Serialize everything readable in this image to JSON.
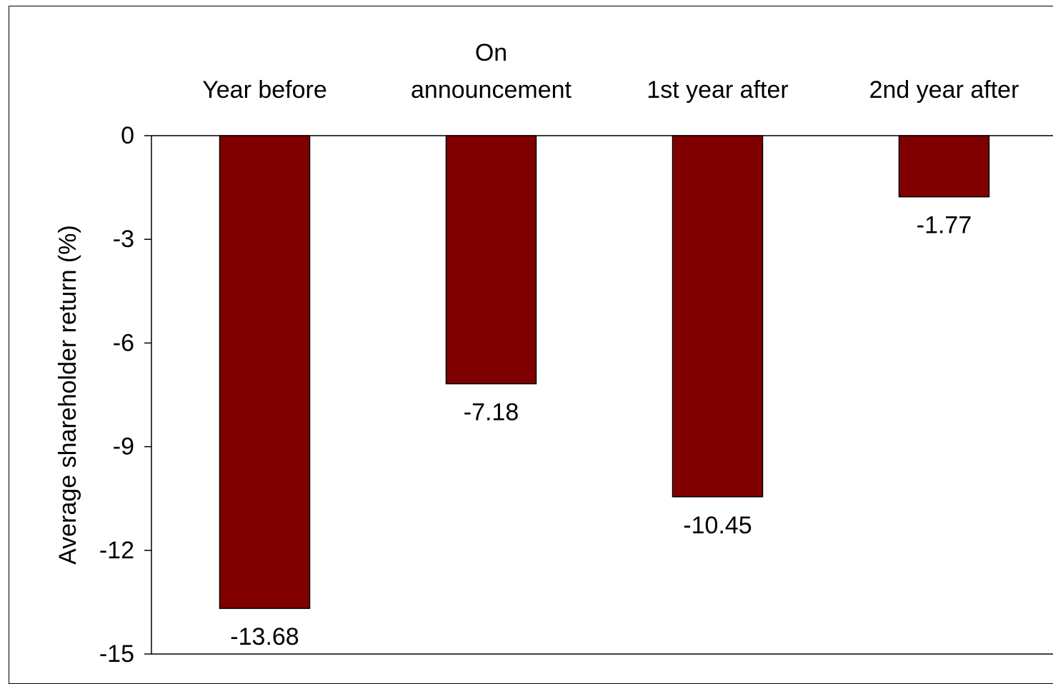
{
  "chart_data": {
    "type": "bar",
    "categories": [
      [
        "Year before"
      ],
      [
        "On",
        "announcement"
      ],
      [
        "1st year after"
      ],
      [
        "2nd year after"
      ]
    ],
    "values": [
      -13.68,
      -7.18,
      -10.45,
      -1.77
    ],
    "data_labels": [
      "-13.68",
      "-7.18",
      "-10.45",
      "-1.77"
    ],
    "title": "",
    "xlabel": "",
    "ylabel": "Average shareholder return (%)",
    "ylim": [
      -15,
      0
    ],
    "yticks": [
      0,
      -3,
      -6,
      -9,
      -12,
      -15
    ],
    "ytick_labels": [
      "0",
      "-3",
      "-6",
      "-9",
      "-12",
      "-15"
    ],
    "category_axis_position": "top",
    "grid": false,
    "legend": "none",
    "bar_color": "#800000",
    "bar_edge_color": "#000000"
  }
}
